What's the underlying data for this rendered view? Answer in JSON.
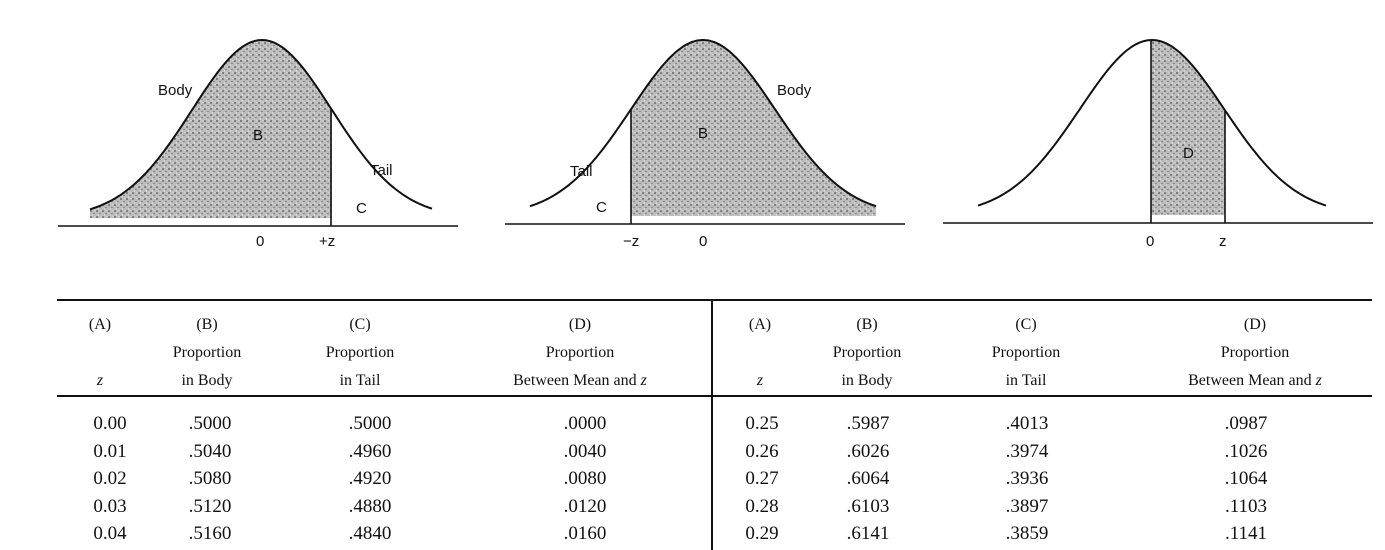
{
  "figures": [
    {
      "labels": {
        "body": "Body",
        "tail": "Tail",
        "b": "B",
        "c": "C"
      },
      "ticks": {
        "zero": "0",
        "z": "+z"
      }
    },
    {
      "labels": {
        "body": "Body",
        "tail": "Tail",
        "b": "B",
        "c": "C"
      },
      "ticks": {
        "zero": "0",
        "z": "−z"
      }
    },
    {
      "labels": {
        "d": "D"
      },
      "ticks": {
        "zero": "0",
        "z": "z"
      }
    }
  ],
  "table": {
    "headers": {
      "a": {
        "letter": "(A)",
        "line3": "z"
      },
      "b": {
        "letter": "(B)",
        "line2": "Proportion",
        "line3": "in Body"
      },
      "c": {
        "letter": "(C)",
        "line2": "Proportion",
        "line3": "in Tail"
      },
      "d": {
        "letter": "(D)",
        "line2": "Proportion",
        "line3a": "Between Mean and ",
        "line3b": "z"
      }
    },
    "left": {
      "z": [
        "0.00",
        "0.01",
        "0.02",
        "0.03",
        "0.04"
      ],
      "body": [
        ".5000",
        ".5040",
        ".5080",
        ".5120",
        ".5160"
      ],
      "tail": [
        ".5000",
        ".4960",
        ".4920",
        ".4880",
        ".4840"
      ],
      "mean": [
        ".0000",
        ".0040",
        ".0080",
        ".0120",
        ".0160"
      ]
    },
    "right": {
      "z": [
        "0.25",
        "0.26",
        "0.27",
        "0.28",
        "0.29"
      ],
      "body": [
        ".5987",
        ".6026",
        ".6064",
        ".6103",
        ".6141"
      ],
      "tail": [
        ".4013",
        ".3974",
        ".3936",
        ".3897",
        ".3859"
      ],
      "mean": [
        ".0987",
        ".1026",
        ".1064",
        ".1103",
        ".1141"
      ]
    }
  }
}
